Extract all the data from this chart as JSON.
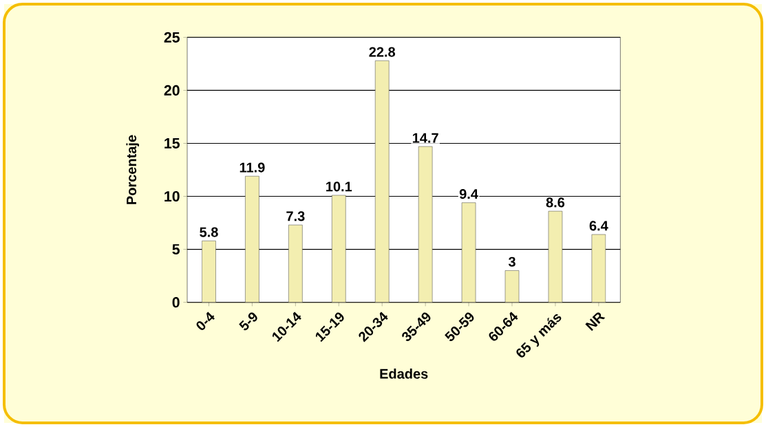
{
  "chart_data": {
    "type": "bar",
    "xlabel": "Edades",
    "ylabel": "Porcentaje",
    "categories": [
      "0-4",
      "5-9",
      "10-14",
      "15-19",
      "20-34",
      "35-49",
      "50-59",
      "60-64",
      "65 y más",
      "NR"
    ],
    "values": [
      5.8,
      11.9,
      7.3,
      10.1,
      22.8,
      14.7,
      9.4,
      3,
      8.6,
      6.4
    ],
    "color": "#f3eeb0",
    "ylim": [
      0,
      25
    ],
    "yticks": [
      0,
      5,
      10,
      15,
      20,
      25
    ],
    "grid": "y",
    "data_labels": true
  }
}
